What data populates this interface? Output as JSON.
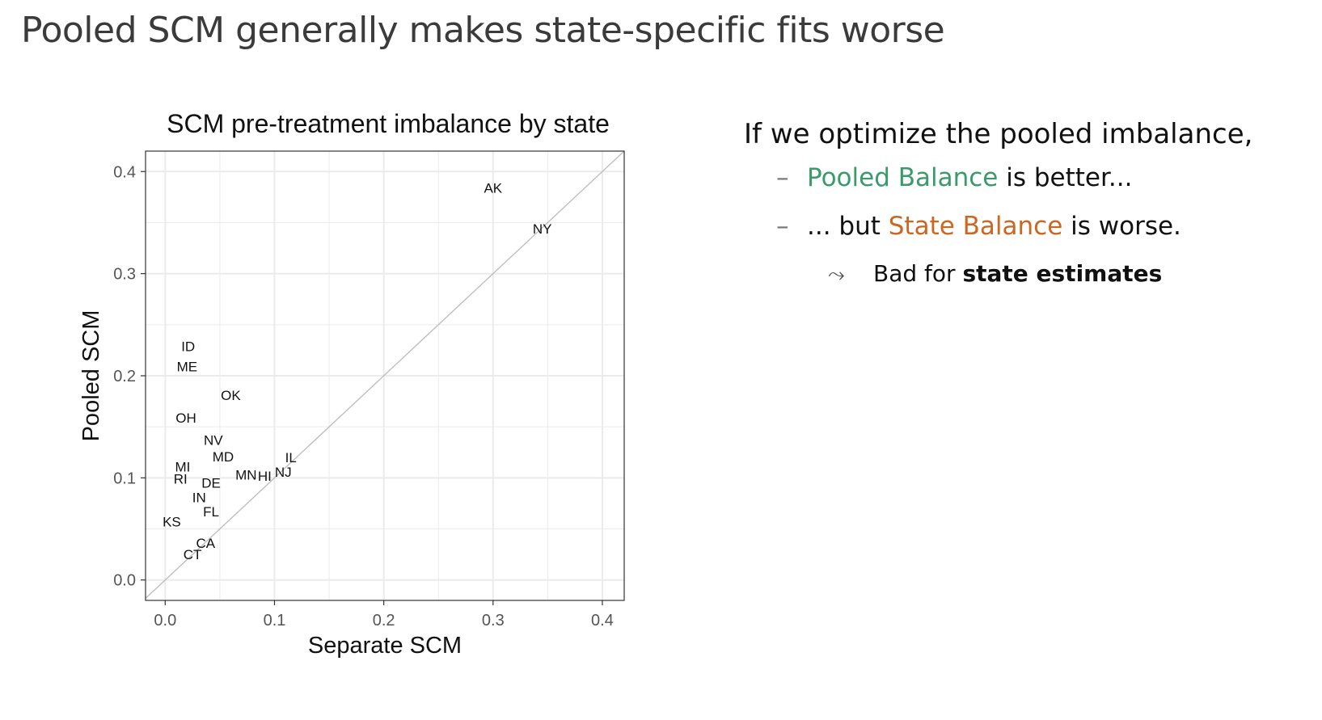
{
  "slide": {
    "title": "Pooled SCM generally makes state-specific fits worse"
  },
  "bullets": {
    "lead": "If we optimize the pooled imbalance,",
    "items": [
      {
        "dash": "–",
        "pre": "",
        "highlight": "Pooled Balance",
        "post": " is better..."
      },
      {
        "dash": "–",
        "pre": "... but ",
        "highlight": "State Balance",
        "post": " is worse."
      }
    ],
    "sub": {
      "arrow": "⤳",
      "pre": "Bad for ",
      "bold": "state estimates"
    }
  },
  "colors": {
    "pooled_balance": "#3a9a6a",
    "state_balance": "#cc6620",
    "reference_line": "#bbbbbb",
    "grid": "#ebebeb"
  },
  "chart_data": {
    "type": "scatter",
    "title": "SCM pre-treatment imbalance by state",
    "xlabel": "Separate SCM",
    "ylabel": "Pooled SCM",
    "xlim": [
      -0.018,
      0.42
    ],
    "ylim": [
      -0.02,
      0.42
    ],
    "xticks": [
      0.0,
      0.1,
      0.2,
      0.3,
      0.4
    ],
    "yticks": [
      0.0,
      0.1,
      0.2,
      0.3,
      0.4
    ],
    "xtick_labels": [
      "0.0",
      "0.1",
      "0.2",
      "0.3",
      "0.4"
    ],
    "ytick_labels": [
      "0.0",
      "0.1",
      "0.2",
      "0.3",
      "0.4"
    ],
    "grid": true,
    "reference_line": "y = x",
    "points": [
      {
        "label": "AK",
        "x": 0.3,
        "y": 0.384
      },
      {
        "label": "NY",
        "x": 0.345,
        "y": 0.344
      },
      {
        "label": "ID",
        "x": 0.021,
        "y": 0.229
      },
      {
        "label": "ME",
        "x": 0.02,
        "y": 0.209
      },
      {
        "label": "OK",
        "x": 0.06,
        "y": 0.181
      },
      {
        "label": "OH",
        "x": 0.019,
        "y": 0.159
      },
      {
        "label": "NV",
        "x": 0.044,
        "y": 0.137
      },
      {
        "label": "MD",
        "x": 0.053,
        "y": 0.121
      },
      {
        "label": "IL",
        "x": 0.115,
        "y": 0.12
      },
      {
        "label": "MI",
        "x": 0.016,
        "y": 0.111
      },
      {
        "label": "NJ",
        "x": 0.108,
        "y": 0.106
      },
      {
        "label": "MN",
        "x": 0.074,
        "y": 0.103
      },
      {
        "label": "HI",
        "x": 0.091,
        "y": 0.102
      },
      {
        "label": "RI",
        "x": 0.014,
        "y": 0.099
      },
      {
        "label": "DE",
        "x": 0.042,
        "y": 0.095
      },
      {
        "label": "IN",
        "x": 0.031,
        "y": 0.081
      },
      {
        "label": "FL",
        "x": 0.042,
        "y": 0.067
      },
      {
        "label": "KS",
        "x": 0.006,
        "y": 0.057
      },
      {
        "label": "CA",
        "x": 0.037,
        "y": 0.036
      },
      {
        "label": "CT",
        "x": 0.025,
        "y": 0.025
      }
    ]
  }
}
